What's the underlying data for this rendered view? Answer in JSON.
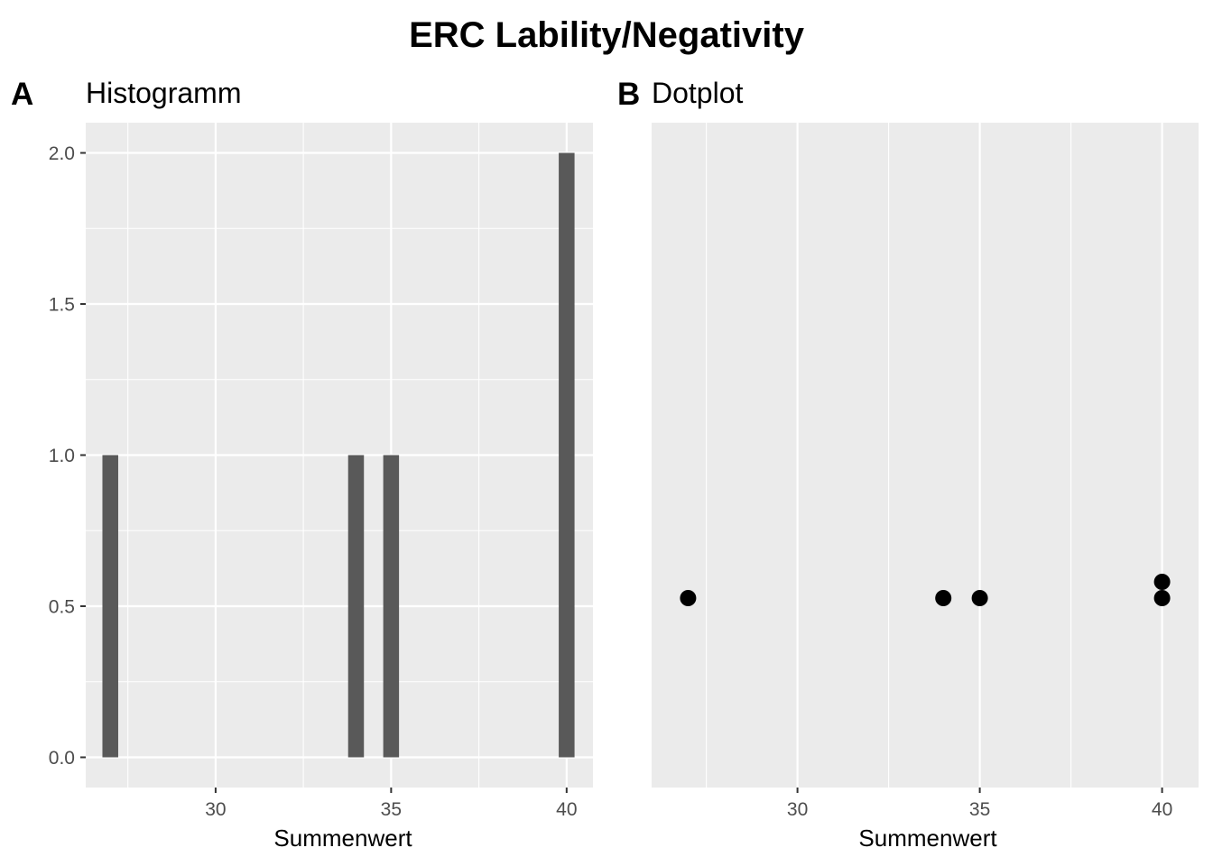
{
  "figure": {
    "title": "ERC Lability/Negativity"
  },
  "chart_data": [
    {
      "type": "bar",
      "tag": "A",
      "title": "Histogramm",
      "xlabel": "Summenwert",
      "ylabel": "",
      "xlim": [
        26.3,
        40.75
      ],
      "ylim": [
        -0.1,
        2.1
      ],
      "xticks": [
        30,
        35,
        40
      ],
      "xtick_labels": [
        "30",
        "35",
        "40"
      ],
      "yticks": [
        0.0,
        0.5,
        1.0,
        1.5,
        2.0
      ],
      "ytick_labels": [
        "0.0",
        "0.5",
        "1.0",
        "1.5",
        "2.0"
      ],
      "bin_width": 0.45,
      "bars": [
        {
          "x": 27,
          "count": 1
        },
        {
          "x": 34,
          "count": 1
        },
        {
          "x": 35,
          "count": 1
        },
        {
          "x": 40,
          "count": 2
        }
      ],
      "grid": true,
      "bar_color": "#595959",
      "panel_background": "#ebebeb"
    },
    {
      "type": "scatter",
      "tag": "B",
      "title": "Dotplot",
      "xlabel": "Summenwert",
      "ylabel": "",
      "xlim": [
        26.0,
        41.0
      ],
      "xticks": [
        30,
        35,
        40
      ],
      "xtick_labels": [
        "30",
        "35",
        "40"
      ],
      "points": [
        {
          "x": 27,
          "stack": 1
        },
        {
          "x": 34,
          "stack": 1
        },
        {
          "x": 35,
          "stack": 1
        },
        {
          "x": 40,
          "stack": 1
        },
        {
          "x": 40,
          "stack": 2
        }
      ],
      "grid": true,
      "point_color": "#000000",
      "panel_background": "#ebebeb"
    }
  ]
}
